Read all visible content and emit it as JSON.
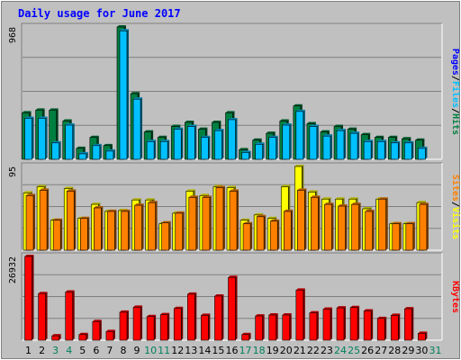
{
  "chart_data": [
    {
      "type": "bar",
      "title": "Daily usage for June 2017",
      "categories": [
        "1",
        "2",
        "3",
        "4",
        "5",
        "6",
        "7",
        "8",
        "9",
        "10",
        "11",
        "12",
        "13",
        "14",
        "15",
        "16",
        "17",
        "18",
        "19",
        "20",
        "21",
        "22",
        "23",
        "24",
        "25",
        "26",
        "27",
        "28",
        "29",
        "30",
        "31"
      ],
      "weekend_days": [
        "3",
        "4",
        "10",
        "11",
        "17",
        "18",
        "24",
        "25",
        "31"
      ],
      "panels": [
        {
          "id": "hits",
          "max_label": "968",
          "ylim": [
            0,
            968
          ],
          "axis_label_parts": [
            "Pages",
            "Files",
            "Hits"
          ],
          "series": [
            {
              "name": "Hits",
              "color": "#008040",
              "values": [
                340,
                360,
                360,
                280,
                80,
                160,
                100,
                968,
                480,
                200,
                160,
                240,
                270,
                220,
                270,
                340,
                70,
                140,
                190,
                280,
                390,
                260,
                200,
                240,
                220,
                180,
                160,
                160,
                150,
                140,
                0
              ]
            },
            {
              "name": "Files",
              "color": "#00c0ff",
              "values": [
                300,
                300,
                120,
                250,
                40,
                100,
                60,
                940,
                440,
                130,
                130,
                220,
                240,
                160,
                210,
                290,
                50,
                110,
                160,
                250,
                350,
                240,
                170,
                210,
                190,
                130,
                130,
                120,
                120,
                80,
                0
              ]
            },
            {
              "name": "Pages",
              "color": "#0000ff",
              "values": [
                0,
                0,
                0,
                0,
                0,
                0,
                0,
                0,
                0,
                0,
                0,
                0,
                0,
                0,
                0,
                0,
                0,
                0,
                0,
                0,
                0,
                0,
                0,
                0,
                0,
                0,
                0,
                0,
                0,
                0,
                0
              ]
            }
          ]
        },
        {
          "id": "visits",
          "max_label": "95",
          "ylim": [
            0,
            95
          ],
          "axis_label_parts": [
            "Sites",
            "Visits"
          ],
          "series": [
            {
              "name": "Visits",
              "color": "#ffff00",
              "values": [
                65,
                72,
                34,
                70,
                36,
                52,
                44,
                45,
                57,
                57,
                30,
                42,
                67,
                62,
                72,
                71,
                34,
                40,
                36,
                72,
                95,
                66,
                58,
                58,
                58,
                47,
                58,
                30,
                30,
                54,
                0
              ]
            },
            {
              "name": "Sites",
              "color": "#ff8000",
              "values": [
                62,
                68,
                34,
                67,
                36,
                48,
                44,
                44,
                51,
                54,
                31,
                42,
                60,
                60,
                71,
                67,
                30,
                38,
                33,
                44,
                68,
                60,
                52,
                50,
                52,
                44,
                58,
                30,
                30,
                52,
                0
              ]
            }
          ]
        },
        {
          "id": "kbytes",
          "max_label": "26932",
          "ylim": [
            0,
            26932
          ],
          "axis_label_parts": [
            "KBytes"
          ],
          "series": [
            {
              "name": "KBytes",
              "color": "#ff0000",
              "values": [
                26932,
                15000,
                1400,
                15500,
                1800,
                6000,
                2800,
                9000,
                10600,
                7600,
                8200,
                10200,
                14800,
                8000,
                14200,
                20200,
                1800,
                7800,
                8100,
                8100,
                16100,
                8800,
                10000,
                10400,
                10500,
                9400,
                7000,
                8000,
                10100,
                2200,
                0
              ]
            }
          ]
        }
      ]
    }
  ]
}
